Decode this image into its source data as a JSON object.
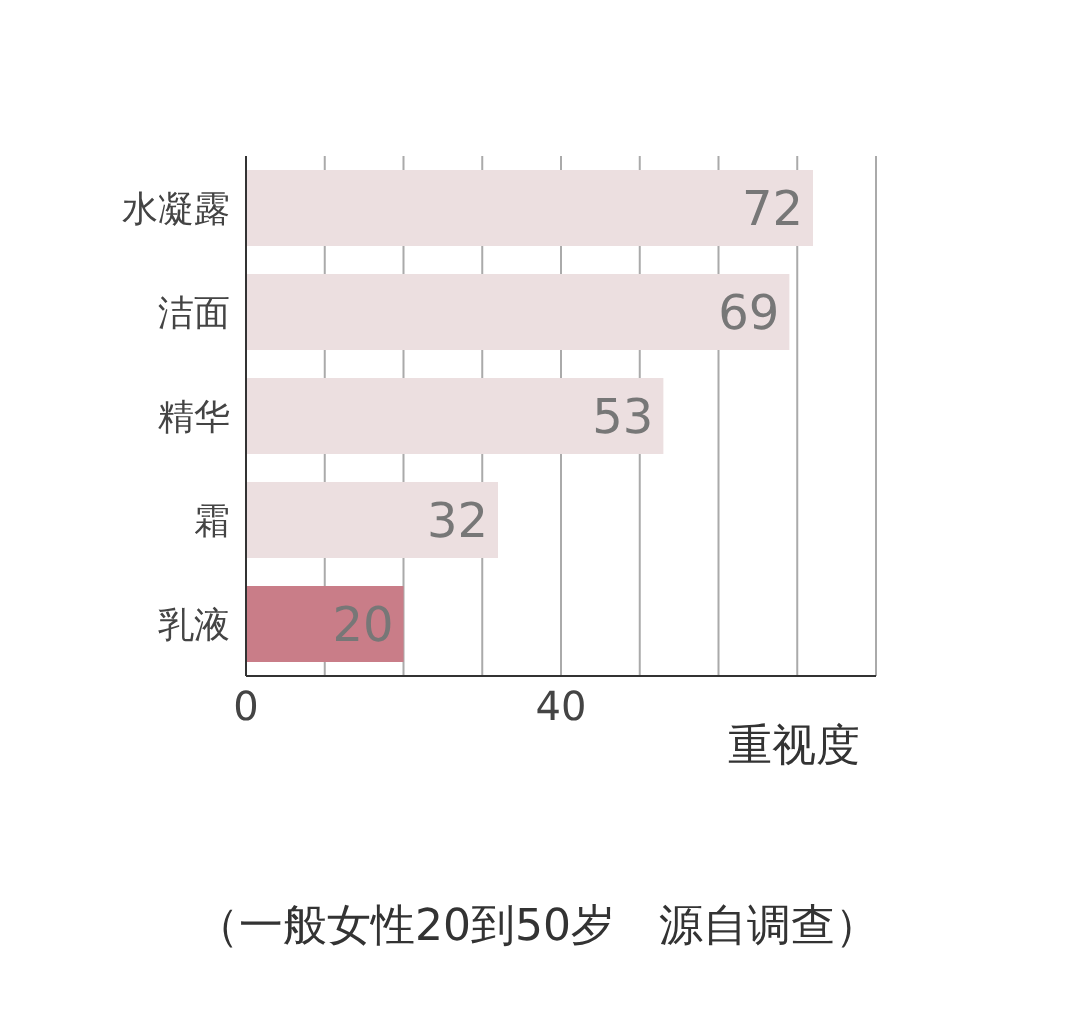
{
  "chart_data": {
    "type": "bar",
    "orientation": "horizontal",
    "categories": [
      "水凝露",
      "洁面",
      "精华",
      "霜",
      "乳液"
    ],
    "values": [
      72,
      69,
      53,
      32,
      20
    ],
    "colors": [
      "#ecdfe0",
      "#ecdfe0",
      "#ecdfe0",
      "#ecdfe0",
      "#c97d88"
    ],
    "data_labels": true,
    "xlabel": "重视度",
    "xlim": [
      0,
      80
    ],
    "xticks": [
      0,
      {
        "value": 10,
        "label": null
      },
      {
        "value": 20,
        "label": null
      },
      {
        "value": 30,
        "label": null
      },
      40,
      {
        "value": 50,
        "label": null
      },
      {
        "value": 60,
        "label": null
      },
      {
        "value": 70,
        "label": null
      },
      {
        "value": 80,
        "label": null
      }
    ],
    "grid": "x",
    "legend": false,
    "annotations": [
      "（一般女性20到50岁　源自调查）"
    ]
  }
}
